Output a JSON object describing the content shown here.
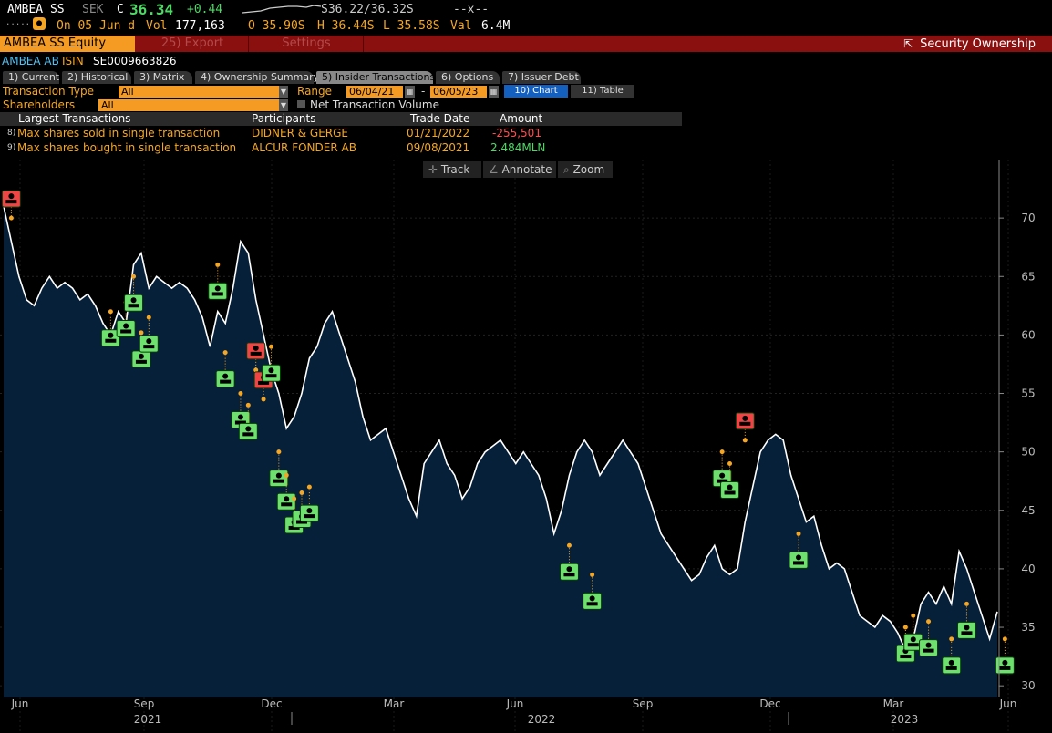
{
  "ticker": {
    "symbol": "AMBEA SS",
    "currency": "SEK",
    "flag": "C",
    "last": "36.34",
    "change": "+0.44",
    "bidask": "S36.22/36.32S",
    "asksize": "--x--",
    "date_label": "On 05 Jun d",
    "vol_label": "Vol",
    "vol": "177,163",
    "open": "O 35.90S",
    "high": "H 36.44S",
    "low": "L 35.58S",
    "val_label": "Val",
    "val": "6.4M"
  },
  "toolbar": {
    "title": "AMBEA SS Equity",
    "export": "25) Export",
    "settings": "Settings",
    "security_ownership": "Security Ownership"
  },
  "header": {
    "name": "AMBEA AB",
    "isin_label": "ISIN",
    "isin": "SE0009663826"
  },
  "tabs": [
    {
      "label": "1) Current"
    },
    {
      "label": "2) Historical"
    },
    {
      "label": "3) Matrix"
    },
    {
      "label": "4) Ownership Summary"
    },
    {
      "label": "5) Insider Transactions"
    },
    {
      "label": "6) Options"
    },
    {
      "label": "7) Issuer Debt"
    }
  ],
  "filters": {
    "transaction_type_label": "Transaction Type",
    "transaction_type_value": "All",
    "shareholders_label": "Shareholders",
    "shareholders_value": "All",
    "range_label": "Range",
    "range_start": "06/04/21",
    "range_sep": "-",
    "range_end": "06/05/23",
    "chart_btn": "10) Chart",
    "table_btn": "11) Table",
    "net_volume_label": "Net Transaction Volume"
  },
  "table": {
    "headers": [
      "Largest Transactions",
      "Participants",
      "Trade Date",
      "Amount"
    ],
    "rows": [
      {
        "num": "8)",
        "label": "Max shares sold in single transaction",
        "participant": "DIDNER & GERGE",
        "date": "01/21/2022",
        "amount": "-255,501"
      },
      {
        "num": "9)",
        "label": "Max shares bought in single transaction",
        "participant": "ALCUR FONDER AB",
        "date": "09/08/2021",
        "amount": "2.484MLN"
      }
    ]
  },
  "chart_tools": {
    "track": "Track",
    "annotate": "Annotate",
    "zoom": "Zoom"
  },
  "colors": {
    "accent": "#f59a23",
    "redbar": "#8a1010",
    "chart_bg": "#07203a",
    "buy_marker": "#6ee06e",
    "sell_marker": "#f04545",
    "line": "#ffffff"
  },
  "chart_data": {
    "type": "line",
    "title": "",
    "ylim": [
      29,
      75
    ],
    "yticks": [
      30,
      35,
      40,
      45,
      50,
      55,
      60,
      65,
      70
    ],
    "x_month_labels": [
      "Jun",
      "Sep",
      "Dec",
      "Mar",
      "Jun",
      "Sep",
      "Dec",
      "Mar",
      "Jun"
    ],
    "x_year_labels": [
      "2021",
      "2022",
      "2023"
    ],
    "series": [
      {
        "values": [
          71,
          68,
          65,
          63,
          62.5,
          64,
          65,
          64,
          64.5,
          64,
          63,
          63.5,
          62.5,
          61,
          60,
          62,
          61,
          66,
          67,
          64,
          65,
          64.5,
          64,
          64.5,
          64,
          63,
          61.5,
          59,
          62,
          61,
          64,
          68,
          67,
          63,
          60,
          57,
          55,
          52,
          53,
          55,
          58,
          59,
          61,
          62,
          60,
          58,
          56,
          53,
          51,
          51.5,
          52,
          50,
          48,
          46,
          44.5,
          49,
          50,
          51,
          49,
          48,
          46,
          47,
          49,
          50,
          50.5,
          51,
          50,
          49,
          50,
          49,
          48,
          46,
          43,
          45,
          48,
          50,
          51,
          50,
          48,
          49,
          50,
          51,
          50,
          49,
          47,
          45,
          43,
          42,
          41,
          40,
          39,
          39.5,
          41,
          42,
          40,
          39.5,
          40,
          44,
          47,
          50,
          51,
          51.5,
          51,
          48,
          46,
          44,
          44.5,
          42,
          40,
          40.5,
          40,
          38,
          36,
          35.5,
          35,
          36,
          35.5,
          34.5,
          33,
          34,
          37,
          38,
          37,
          38.5,
          37,
          41.5,
          40,
          38,
          36,
          34,
          36.34
        ]
      }
    ],
    "insider_sells": [
      {
        "marker": "sell",
        "value": 70
      },
      {
        "marker": "sell",
        "value": 57
      },
      {
        "marker": "sell",
        "value": 54.5
      },
      {
        "marker": "sell",
        "value": 51
      }
    ],
    "insider_buys": [
      {
        "marker": "buy",
        "value": 62
      },
      {
        "marker": "buy",
        "value": 62.8
      },
      {
        "marker": "buy",
        "value": 65
      },
      {
        "marker": "buy",
        "value": 60.2
      },
      {
        "marker": "buy",
        "value": 61.5
      },
      {
        "marker": "buy",
        "value": 66
      },
      {
        "marker": "buy",
        "value": 58.5
      },
      {
        "marker": "buy",
        "value": 55
      },
      {
        "marker": "buy",
        "value": 54
      },
      {
        "marker": "buy",
        "value": 59
      },
      {
        "marker": "buy",
        "value": 50
      },
      {
        "marker": "buy",
        "value": 48
      },
      {
        "marker": "buy",
        "value": 46
      },
      {
        "marker": "buy",
        "value": 46.5
      },
      {
        "marker": "buy",
        "value": 47
      },
      {
        "marker": "buy",
        "value": 42
      },
      {
        "marker": "buy",
        "value": 39.5
      },
      {
        "marker": "buy",
        "value": 50
      },
      {
        "marker": "buy",
        "value": 49
      },
      {
        "marker": "buy",
        "value": 43
      },
      {
        "marker": "buy",
        "value": 35
      },
      {
        "marker": "buy",
        "value": 36
      },
      {
        "marker": "buy",
        "value": 35.5
      },
      {
        "marker": "buy",
        "value": 34
      },
      {
        "marker": "buy",
        "value": 37
      },
      {
        "marker": "buy",
        "value": 34
      }
    ]
  }
}
